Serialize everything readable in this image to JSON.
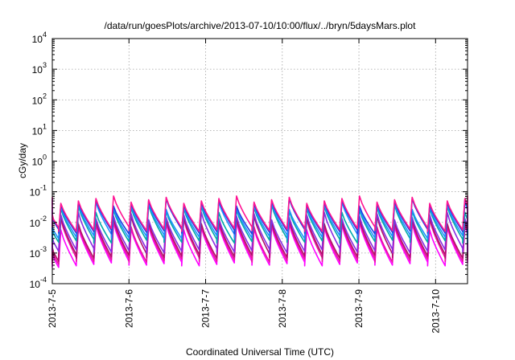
{
  "chart_data": {
    "type": "line",
    "title": "/data/run/goesPlots/archive/2013-07-10/10:00/flux/../bryn/5daysMars.plot",
    "xlabel": "Coordinated Universal Time (UTC)",
    "ylabel": "cGy/day",
    "yscale": "log",
    "ylim": [
      0.0001,
      10000
    ],
    "yticks": [
      {
        "value": 0.0001,
        "base": "10",
        "exp": "-4"
      },
      {
        "value": 0.001,
        "base": "10",
        "exp": "-3"
      },
      {
        "value": 0.01,
        "base": "10",
        "exp": "-2"
      },
      {
        "value": 0.1,
        "base": "10",
        "exp": "-1"
      },
      {
        "value": 1,
        "base": "10",
        "exp": "0"
      },
      {
        "value": 10,
        "base": "10",
        "exp": "1"
      },
      {
        "value": 100,
        "base": "10",
        "exp": "2"
      },
      {
        "value": 1000,
        "base": "10",
        "exp": "3"
      },
      {
        "value": 10000,
        "base": "10",
        "exp": "4"
      }
    ],
    "xlim": [
      "2013-07-05T00:00",
      "2013-07-10T10:00"
    ],
    "xticks": [
      "2013-7-5",
      "2013-7-6",
      "2013-7-7",
      "2013-7-8",
      "2013-7-9",
      "2013-7-10"
    ],
    "grid": true,
    "legend": "none",
    "cycle_hours": 5.5,
    "series": [
      {
        "color": "#ff00ff",
        "peak": 0.0075,
        "trough": 0.00045
      },
      {
        "color": "#e8149c",
        "peak": 0.0095,
        "trough": 0.0006
      },
      {
        "color": "#b0106a",
        "peak": 0.012,
        "trough": 0.0008
      },
      {
        "color": "#8a2be2",
        "peak": 0.016,
        "trough": 0.0012
      },
      {
        "color": "#00aaaa",
        "peak": 0.028,
        "trough": 0.0025
      },
      {
        "color": "#1e90ff",
        "peak": 0.035,
        "trough": 0.0035
      },
      {
        "color": "#2040e0",
        "peak": 0.045,
        "trough": 0.005
      },
      {
        "color": "#ff1493",
        "peak": 0.055,
        "trough": 0.006
      }
    ]
  }
}
